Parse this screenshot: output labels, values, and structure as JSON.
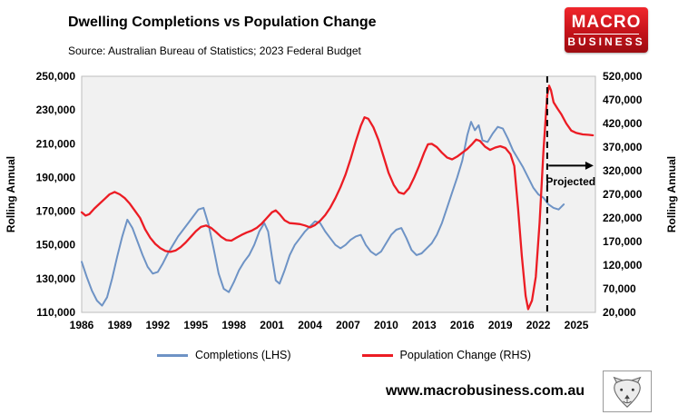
{
  "logo": {
    "line1": "MACRO",
    "line2": "BUSINESS",
    "bg": "#d11118"
  },
  "footer": {
    "url": "www.macrobusiness.com.au"
  },
  "legend": [
    {
      "label": "Completions (LHS)",
      "color": "#6e93c5"
    },
    {
      "label": "Population Change (RHS)",
      "color": "#ec1c24"
    }
  ],
  "chart_data": {
    "type": "line",
    "title": "Dwelling Completions vs Population Change",
    "subtitle": "Source: Australian Bureau of Statistics; 2023 Federal Budget",
    "plot_bg": "#f1f1f1",
    "grid": false,
    "legend_position": "bottom",
    "x_range": [
      1986,
      2026.5
    ],
    "x_ticks": [
      1986,
      1989,
      1992,
      1995,
      1998,
      2001,
      2004,
      2007,
      2010,
      2013,
      2016,
      2019,
      2022,
      2025
    ],
    "lhs_axis": {
      "label": "Rolling Annual",
      "min": 110000,
      "max": 250000,
      "ticks": [
        250000,
        230000,
        210000,
        190000,
        170000,
        150000,
        130000,
        110000
      ]
    },
    "rhs_axis": {
      "label": "Rolling Annual",
      "min": 20000,
      "max": 520000,
      "ticks": [
        520000,
        470000,
        420000,
        370000,
        320000,
        270000,
        220000,
        170000,
        120000,
        70000,
        20000
      ]
    },
    "series": [
      {
        "name": "Completions (LHS)",
        "axis": "lhs",
        "color": "#6e93c5",
        "points": [
          [
            1986,
            140000
          ],
          [
            1986.4,
            131000
          ],
          [
            1986.8,
            123000
          ],
          [
            1987.2,
            117000
          ],
          [
            1987.6,
            114000
          ],
          [
            1988,
            119000
          ],
          [
            1988.4,
            130000
          ],
          [
            1988.8,
            143000
          ],
          [
            1989.2,
            155000
          ],
          [
            1989.6,
            165000
          ],
          [
            1990,
            160000
          ],
          [
            1990.4,
            152000
          ],
          [
            1990.8,
            144000
          ],
          [
            1991.2,
            137000
          ],
          [
            1991.6,
            133000
          ],
          [
            1992,
            134000
          ],
          [
            1992.4,
            139000
          ],
          [
            1992.8,
            145000
          ],
          [
            1993.2,
            150000
          ],
          [
            1993.6,
            155000
          ],
          [
            1994,
            159000
          ],
          [
            1994.4,
            163000
          ],
          [
            1994.8,
            167000
          ],
          [
            1995.2,
            171000
          ],
          [
            1995.6,
            172000
          ],
          [
            1996,
            162000
          ],
          [
            1996.4,
            148000
          ],
          [
            1996.8,
            133000
          ],
          [
            1997.2,
            124000
          ],
          [
            1997.6,
            122000
          ],
          [
            1998,
            128000
          ],
          [
            1998.4,
            135000
          ],
          [
            1998.8,
            140000
          ],
          [
            1999.2,
            144000
          ],
          [
            1999.6,
            150000
          ],
          [
            2000,
            158000
          ],
          [
            2000.4,
            163000
          ],
          [
            2000.7,
            158000
          ],
          [
            2001,
            143000
          ],
          [
            2001.3,
            129000
          ],
          [
            2001.6,
            127000
          ],
          [
            2002,
            135000
          ],
          [
            2002.4,
            144000
          ],
          [
            2002.8,
            150000
          ],
          [
            2003.2,
            154000
          ],
          [
            2003.6,
            158000
          ],
          [
            2004,
            161000
          ],
          [
            2004.4,
            164000
          ],
          [
            2004.8,
            163000
          ],
          [
            2005.2,
            158000
          ],
          [
            2005.6,
            154000
          ],
          [
            2006,
            150000
          ],
          [
            2006.4,
            148000
          ],
          [
            2006.8,
            150000
          ],
          [
            2007.2,
            153000
          ],
          [
            2007.6,
            155000
          ],
          [
            2008,
            156000
          ],
          [
            2008.4,
            150000
          ],
          [
            2008.8,
            146000
          ],
          [
            2009.2,
            144000
          ],
          [
            2009.6,
            146000
          ],
          [
            2010,
            151000
          ],
          [
            2010.4,
            156000
          ],
          [
            2010.8,
            159000
          ],
          [
            2011.2,
            160000
          ],
          [
            2011.6,
            154000
          ],
          [
            2012,
            147000
          ],
          [
            2012.4,
            144000
          ],
          [
            2012.8,
            145000
          ],
          [
            2013.2,
            148000
          ],
          [
            2013.6,
            151000
          ],
          [
            2014,
            156000
          ],
          [
            2014.4,
            163000
          ],
          [
            2014.8,
            172000
          ],
          [
            2015.2,
            181000
          ],
          [
            2015.6,
            190000
          ],
          [
            2016,
            200000
          ],
          [
            2016.4,
            215000
          ],
          [
            2016.7,
            223000
          ],
          [
            2017,
            218000
          ],
          [
            2017.3,
            221000
          ],
          [
            2017.6,
            212000
          ],
          [
            2018,
            211000
          ],
          [
            2018.4,
            216000
          ],
          [
            2018.8,
            220000
          ],
          [
            2019.2,
            219000
          ],
          [
            2019.6,
            213000
          ],
          [
            2020,
            206000
          ],
          [
            2020.4,
            201000
          ],
          [
            2020.8,
            196000
          ],
          [
            2021.2,
            190000
          ],
          [
            2021.6,
            184000
          ],
          [
            2022,
            180000
          ],
          [
            2022.4,
            178000
          ],
          [
            2022.8,
            174000
          ],
          [
            2023.2,
            172000
          ],
          [
            2023.6,
            171000
          ],
          [
            2024,
            174000
          ]
        ]
      },
      {
        "name": "Population Change (RHS)",
        "axis": "rhs",
        "color": "#ec1c24",
        "points": [
          [
            1986,
            232000
          ],
          [
            1986.3,
            225000
          ],
          [
            1986.6,
            228000
          ],
          [
            1987,
            240000
          ],
          [
            1987.4,
            250000
          ],
          [
            1987.8,
            260000
          ],
          [
            1988.2,
            270000
          ],
          [
            1988.6,
            275000
          ],
          [
            1989,
            270000
          ],
          [
            1989.4,
            262000
          ],
          [
            1989.8,
            250000
          ],
          [
            1990.2,
            235000
          ],
          [
            1990.6,
            220000
          ],
          [
            1991,
            196000
          ],
          [
            1991.4,
            178000
          ],
          [
            1991.8,
            165000
          ],
          [
            1992.2,
            156000
          ],
          [
            1992.6,
            150000
          ],
          [
            1993,
            148000
          ],
          [
            1993.4,
            151000
          ],
          [
            1993.8,
            158000
          ],
          [
            1994.2,
            168000
          ],
          [
            1994.6,
            180000
          ],
          [
            1995,
            192000
          ],
          [
            1995.4,
            201000
          ],
          [
            1995.8,
            204000
          ],
          [
            1996.2,
            199000
          ],
          [
            1996.6,
            190000
          ],
          [
            1997,
            180000
          ],
          [
            1997.4,
            173000
          ],
          [
            1997.8,
            172000
          ],
          [
            1998.2,
            178000
          ],
          [
            1998.6,
            184000
          ],
          [
            1999,
            189000
          ],
          [
            1999.4,
            193000
          ],
          [
            1999.8,
            199000
          ],
          [
            2000.2,
            208000
          ],
          [
            2000.6,
            220000
          ],
          [
            2001,
            232000
          ],
          [
            2001.3,
            236000
          ],
          [
            2001.6,
            228000
          ],
          [
            2002,
            215000
          ],
          [
            2002.4,
            209000
          ],
          [
            2002.8,
            208000
          ],
          [
            2003.2,
            207000
          ],
          [
            2003.6,
            204000
          ],
          [
            2004,
            200000
          ],
          [
            2004.4,
            205000
          ],
          [
            2004.8,
            214000
          ],
          [
            2005.2,
            226000
          ],
          [
            2005.6,
            242000
          ],
          [
            2006,
            262000
          ],
          [
            2006.4,
            285000
          ],
          [
            2006.8,
            312000
          ],
          [
            2007.2,
            345000
          ],
          [
            2007.6,
            382000
          ],
          [
            2008,
            415000
          ],
          [
            2008.3,
            433000
          ],
          [
            2008.6,
            430000
          ],
          [
            2009,
            412000
          ],
          [
            2009.4,
            385000
          ],
          [
            2009.8,
            350000
          ],
          [
            2010.2,
            315000
          ],
          [
            2010.6,
            290000
          ],
          [
            2011,
            274000
          ],
          [
            2011.4,
            271000
          ],
          [
            2011.8,
            283000
          ],
          [
            2012.2,
            305000
          ],
          [
            2012.6,
            330000
          ],
          [
            2013,
            358000
          ],
          [
            2013.3,
            376000
          ],
          [
            2013.6,
            377000
          ],
          [
            2014,
            370000
          ],
          [
            2014.4,
            358000
          ],
          [
            2014.8,
            348000
          ],
          [
            2015.2,
            344000
          ],
          [
            2015.6,
            350000
          ],
          [
            2016,
            358000
          ],
          [
            2016.4,
            366000
          ],
          [
            2016.8,
            377000
          ],
          [
            2017.1,
            386000
          ],
          [
            2017.4,
            383000
          ],
          [
            2017.8,
            371000
          ],
          [
            2018.2,
            364000
          ],
          [
            2018.6,
            369000
          ],
          [
            2019,
            372000
          ],
          [
            2019.4,
            368000
          ],
          [
            2019.8,
            355000
          ],
          [
            2020.1,
            330000
          ],
          [
            2020.4,
            240000
          ],
          [
            2020.7,
            140000
          ],
          [
            2021,
            55000
          ],
          [
            2021.2,
            27000
          ],
          [
            2021.5,
            45000
          ],
          [
            2021.8,
            95000
          ],
          [
            2022.1,
            210000
          ],
          [
            2022.4,
            360000
          ],
          [
            2022.7,
            480000
          ],
          [
            2022.85,
            500000
          ],
          [
            2023,
            490000
          ],
          [
            2023.2,
            465000
          ],
          [
            2023.5,
            452000
          ],
          [
            2023.8,
            440000
          ],
          [
            2024.2,
            420000
          ],
          [
            2024.6,
            405000
          ],
          [
            2025,
            400000
          ],
          [
            2025.5,
            397000
          ],
          [
            2026,
            396000
          ],
          [
            2026.3,
            395000
          ]
        ]
      }
    ],
    "projection": {
      "dashed_x": 2022.7,
      "arrow": {
        "x1": 2022.8,
        "x2": 2026.35,
        "y_lhs": 197000
      },
      "label": "Projected",
      "label_x": 2024.55,
      "label_y_lhs": 187500
    }
  }
}
